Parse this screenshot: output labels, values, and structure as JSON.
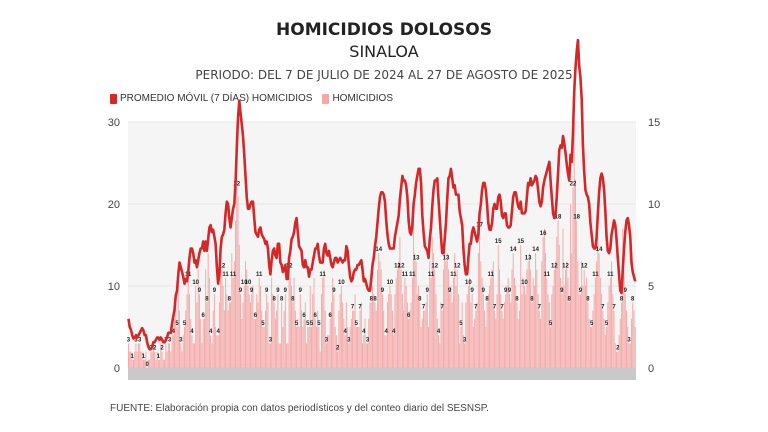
{
  "header": {
    "title": "HOMICIDIOS DOLOSOS",
    "subtitle": "SINALOA",
    "period": "PERIODO: DEL 7 DE JULIO DE 2024 AL 27 DE AGOSTO DE 2025"
  },
  "footer": {
    "source": "FUENTE: Elaboración propia con datos periodísticos y del conteo diario del SESNSP."
  },
  "chart_data": {
    "type": "bar",
    "title": "HOMICIDIOS DOLOSOS",
    "subtitle": "SINALOA",
    "xlabel": "",
    "ylabel": "",
    "ylim": [
      0,
      30
    ],
    "y2lim": [
      0,
      15
    ],
    "yticks": [
      "0",
      "10",
      "20",
      "30"
    ],
    "y2ticks": [
      "0",
      "5",
      "10",
      "15"
    ],
    "grid": true,
    "legend_position": "top-left",
    "colors": {
      "bars": "#f4a7a7",
      "line": "#d62728",
      "grid": "#e6e6e6",
      "plot_bg": "#f5f5f5"
    },
    "series": [
      {
        "name": "PROMEDIO MÓVIL (7 DÍAS) HOMICIDIOS",
        "kind": "line",
        "axis": "right",
        "color": "#d62728",
        "values": []
      },
      {
        "name": "HOMICIDIOS",
        "kind": "bar",
        "axis": "left",
        "color": "#f4a7a7",
        "values": [
          3,
          2,
          2,
          1,
          1,
          2,
          3,
          2,
          3,
          3,
          2,
          2,
          1,
          1,
          2,
          0,
          1,
          1,
          2,
          2,
          3,
          2,
          1,
          2,
          1,
          1,
          3,
          2,
          1,
          1,
          3,
          2,
          3,
          3,
          2,
          5,
          4,
          6,
          8,
          5,
          10,
          7,
          3,
          2,
          4,
          5,
          7,
          9,
          11,
          9,
          6,
          4,
          3,
          3,
          10,
          8,
          12,
          9,
          6,
          3,
          6,
          6,
          12,
          8,
          14,
          11,
          4,
          3,
          7,
          9,
          5,
          4,
          4,
          8,
          14,
          12,
          10,
          7,
          11,
          9,
          7,
          8,
          8,
          14,
          11,
          13,
          18,
          22,
          21,
          15,
          9,
          6,
          8,
          10,
          13,
          12,
          10,
          9,
          8,
          9,
          10,
          6,
          6,
          9,
          8,
          11,
          10,
          7,
          5,
          5,
          7,
          9,
          8,
          3,
          3,
          11,
          9,
          8,
          6,
          7,
          9,
          3,
          3,
          8,
          5,
          7,
          9,
          3,
          3,
          12,
          11,
          10,
          8,
          11,
          7,
          5,
          6,
          5,
          9,
          7,
          5,
          6,
          8,
          3,
          5,
          5,
          10,
          5,
          9,
          11,
          6,
          5,
          7,
          5,
          2,
          9,
          11,
          12,
          7,
          3,
          4,
          4,
          6,
          8,
          11,
          9,
          5,
          4,
          2,
          7,
          9,
          10,
          8,
          6,
          4,
          8,
          5,
          3,
          5,
          6,
          7,
          7,
          9,
          5,
          5,
          5,
          7,
          8,
          3,
          4,
          6,
          3,
          3,
          6,
          8,
          8,
          10,
          9,
          8,
          7,
          12,
          14,
          13,
          12,
          9,
          7,
          4,
          4,
          8,
          9,
          10,
          9,
          7,
          4,
          9,
          11,
          12,
          13,
          16,
          12,
          9,
          7,
          11,
          10,
          8,
          6,
          7,
          8,
          11,
          20,
          14,
          13,
          9,
          10,
          8,
          5,
          6,
          7,
          7,
          8,
          9,
          5,
          13,
          11,
          16,
          14,
          12,
          9,
          6,
          4,
          3,
          8,
          7,
          12,
          15,
          13,
          14,
          12,
          9,
          10,
          8,
          11,
          14,
          10,
          12,
          9,
          3,
          5,
          8,
          4,
          3,
          8,
          9,
          10,
          11,
          8,
          9,
          5,
          6,
          7,
          8,
          14,
          17,
          13,
          11,
          9,
          7,
          5,
          8,
          9,
          10,
          11,
          12,
          13,
          7,
          6,
          9,
          15,
          12,
          9,
          7,
          6,
          8,
          9,
          10,
          11,
          9,
          8,
          12,
          14,
          11,
          10,
          8,
          6,
          7,
          15,
          9,
          11,
          10,
          9,
          12,
          13,
          14,
          12,
          8,
          11,
          10,
          14,
          12,
          9,
          7,
          6,
          13,
          16,
          17,
          14,
          11,
          9,
          8,
          5,
          9,
          10,
          12,
          13,
          16,
          18,
          15,
          11,
          9,
          17,
          10,
          12,
          13,
          11,
          8,
          20,
          14,
          22,
          30,
          23,
          18,
          13,
          9,
          9,
          13,
          10,
          12,
          10,
          11,
          8,
          6,
          5,
          5,
          7,
          9,
          11,
          13,
          16,
          14,
          11,
          9,
          7,
          6,
          4,
          5,
          8,
          10,
          11,
          13,
          9,
          7,
          3,
          2,
          2,
          4,
          6,
          8,
          17,
          12,
          9,
          7,
          5,
          3,
          3,
          6,
          8,
          7,
          5
        ]
      }
    ]
  }
}
